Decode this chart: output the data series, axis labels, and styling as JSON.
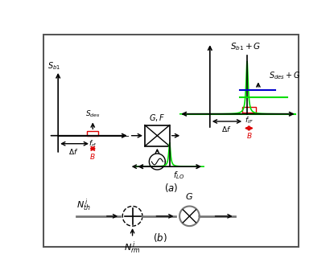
{
  "green": "#00dd00",
  "red": "#dd0000",
  "blue": "#0000cc",
  "black": "#000000",
  "gray": "#777777",
  "dark_gray": "#333333",
  "light_gray": "#aaaaaa"
}
